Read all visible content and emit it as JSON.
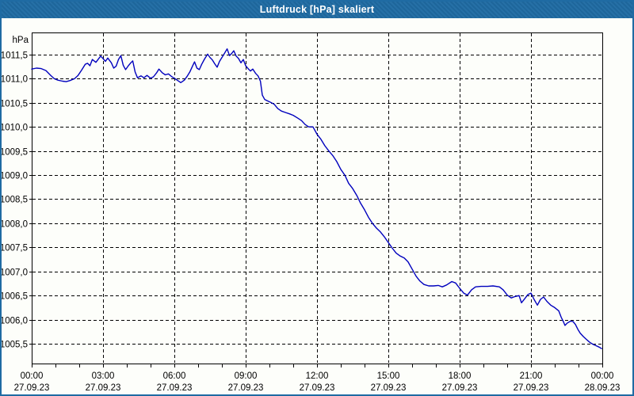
{
  "window": {
    "title": "Luftdruck [hPa] skaliert"
  },
  "colors": {
    "titlebar_bg": "#1f6ba3",
    "titlebar_text": "#ffffff",
    "window_bg": "#fdfefa",
    "window_border": "#1f6ba3",
    "plot_border": "#000000",
    "grid": "#000000",
    "axis_text": "#000000",
    "line": "#0000bd"
  },
  "chart_data": {
    "type": "line",
    "title": "Luftdruck [hPa] skaliert",
    "ylabel": "hPa",
    "xlabel": "",
    "legend_position": "none",
    "grid": "dashed black, horizontal every 0.5 hPa, vertical every 3 h, hourly minor ticks",
    "ylim": [
      1005.5,
      1011.5
    ],
    "xlim_hours": [
      0,
      24
    ],
    "minor_x_tick_every_hours": 1,
    "y_ticks": [
      {
        "value": 1011.5,
        "label": "1011,5"
      },
      {
        "value": 1011.0,
        "label": "1011,0"
      },
      {
        "value": 1010.5,
        "label": "1010,5"
      },
      {
        "value": 1010.0,
        "label": "1010,0"
      },
      {
        "value": 1009.5,
        "label": "1009,5"
      },
      {
        "value": 1009.0,
        "label": "1009,0"
      },
      {
        "value": 1008.5,
        "label": "1008,5"
      },
      {
        "value": 1008.0,
        "label": "1008,0"
      },
      {
        "value": 1007.5,
        "label": "1007,5"
      },
      {
        "value": 1007.0,
        "label": "1007,0"
      },
      {
        "value": 1006.5,
        "label": "1006,5"
      },
      {
        "value": 1006.0,
        "label": "1006,0"
      },
      {
        "value": 1005.5,
        "label": "1005,5"
      }
    ],
    "x_ticks": [
      {
        "hour": 0,
        "time": "00:00",
        "date": "27.09.23"
      },
      {
        "hour": 3,
        "time": "03:00",
        "date": "27.09.23"
      },
      {
        "hour": 6,
        "time": "06:00",
        "date": "27.09.23"
      },
      {
        "hour": 9,
        "time": "09:00",
        "date": "27.09.23"
      },
      {
        "hour": 12,
        "time": "12:00",
        "date": "27.09.23"
      },
      {
        "hour": 15,
        "time": "15:00",
        "date": "27.09.23"
      },
      {
        "hour": 18,
        "time": "18:00",
        "date": "27.09.23"
      },
      {
        "hour": 21,
        "time": "21:00",
        "date": "27.09.23"
      },
      {
        "hour": 24,
        "time": "00:00",
        "date": "28.09.23"
      }
    ],
    "series": [
      {
        "name": "Luftdruck",
        "color": "#0000bd",
        "points": [
          [
            0,
            1011.2
          ],
          [
            0.2,
            1011.22
          ],
          [
            0.4,
            1011.21
          ],
          [
            0.6,
            1011.17
          ],
          [
            0.8,
            1011.07
          ],
          [
            0.95,
            1011.0
          ],
          [
            1.1,
            1010.97
          ],
          [
            1.3,
            1010.95
          ],
          [
            1.45,
            1010.94
          ],
          [
            1.6,
            1010.96
          ],
          [
            1.8,
            1011.0
          ],
          [
            1.95,
            1011.07
          ],
          [
            2.1,
            1011.18
          ],
          [
            2.25,
            1011.3
          ],
          [
            2.35,
            1011.32
          ],
          [
            2.45,
            1011.27
          ],
          [
            2.55,
            1011.4
          ],
          [
            2.7,
            1011.34
          ],
          [
            2.9,
            1011.47
          ],
          [
            3.0,
            1011.42
          ],
          [
            3.1,
            1011.36
          ],
          [
            3.2,
            1011.43
          ],
          [
            3.35,
            1011.33
          ],
          [
            3.45,
            1011.22
          ],
          [
            3.55,
            1011.26
          ],
          [
            3.65,
            1011.4
          ],
          [
            3.75,
            1011.48
          ],
          [
            3.85,
            1011.28
          ],
          [
            3.95,
            1011.19
          ],
          [
            4.05,
            1011.26
          ],
          [
            4.15,
            1011.32
          ],
          [
            4.25,
            1011.37
          ],
          [
            4.35,
            1011.14
          ],
          [
            4.45,
            1011.02
          ],
          [
            4.6,
            1011.06
          ],
          [
            4.72,
            1011.02
          ],
          [
            4.85,
            1011.07
          ],
          [
            5.0,
            1011.01
          ],
          [
            5.12,
            1011.04
          ],
          [
            5.25,
            1011.12
          ],
          [
            5.35,
            1011.2
          ],
          [
            5.5,
            1011.12
          ],
          [
            5.62,
            1011.08
          ],
          [
            5.75,
            1011.1
          ],
          [
            5.9,
            1011.04
          ],
          [
            6.0,
            1011.01
          ],
          [
            6.12,
            1010.97
          ],
          [
            6.27,
            1010.92
          ],
          [
            6.42,
            1010.97
          ],
          [
            6.55,
            1011.06
          ],
          [
            6.65,
            1011.14
          ],
          [
            6.78,
            1011.28
          ],
          [
            6.85,
            1011.35
          ],
          [
            6.95,
            1011.22
          ],
          [
            7.05,
            1011.19
          ],
          [
            7.15,
            1011.3
          ],
          [
            7.27,
            1011.41
          ],
          [
            7.4,
            1011.51
          ],
          [
            7.5,
            1011.44
          ],
          [
            7.6,
            1011.39
          ],
          [
            7.7,
            1011.31
          ],
          [
            7.8,
            1011.24
          ],
          [
            7.9,
            1011.36
          ],
          [
            8.0,
            1011.44
          ],
          [
            8.1,
            1011.52
          ],
          [
            8.22,
            1011.62
          ],
          [
            8.32,
            1011.48
          ],
          [
            8.42,
            1011.53
          ],
          [
            8.5,
            1011.58
          ],
          [
            8.6,
            1011.47
          ],
          [
            8.7,
            1011.42
          ],
          [
            8.8,
            1011.33
          ],
          [
            8.9,
            1011.4
          ],
          [
            9.0,
            1011.27
          ],
          [
            9.1,
            1011.21
          ],
          [
            9.2,
            1011.16
          ],
          [
            9.3,
            1011.2
          ],
          [
            9.42,
            1011.11
          ],
          [
            9.52,
            1011.06
          ],
          [
            9.62,
            1010.95
          ],
          [
            9.7,
            1010.66
          ],
          [
            9.8,
            1010.57
          ],
          [
            9.92,
            1010.54
          ],
          [
            10.05,
            1010.51
          ],
          [
            10.2,
            1010.47
          ],
          [
            10.35,
            1010.38
          ],
          [
            10.5,
            1010.33
          ],
          [
            10.67,
            1010.3
          ],
          [
            10.85,
            1010.27
          ],
          [
            11.0,
            1010.24
          ],
          [
            11.2,
            1010.18
          ],
          [
            11.35,
            1010.13
          ],
          [
            11.5,
            1010.05
          ],
          [
            11.65,
            1010.0
          ],
          [
            11.83,
            1010.0
          ],
          [
            12.0,
            1009.85
          ],
          [
            12.17,
            1009.74
          ],
          [
            12.33,
            1009.61
          ],
          [
            12.5,
            1009.5
          ],
          [
            12.67,
            1009.4
          ],
          [
            12.83,
            1009.28
          ],
          [
            13.0,
            1009.12
          ],
          [
            13.17,
            1009.0
          ],
          [
            13.33,
            1008.83
          ],
          [
            13.5,
            1008.72
          ],
          [
            13.67,
            1008.58
          ],
          [
            13.83,
            1008.42
          ],
          [
            14.0,
            1008.28
          ],
          [
            14.17,
            1008.12
          ],
          [
            14.33,
            1008.0
          ],
          [
            14.5,
            1007.9
          ],
          [
            14.67,
            1007.82
          ],
          [
            14.83,
            1007.72
          ],
          [
            15.0,
            1007.6
          ],
          [
            15.17,
            1007.48
          ],
          [
            15.33,
            1007.38
          ],
          [
            15.5,
            1007.32
          ],
          [
            15.67,
            1007.28
          ],
          [
            15.83,
            1007.2
          ],
          [
            16.0,
            1007.05
          ],
          [
            16.17,
            1006.9
          ],
          [
            16.33,
            1006.8
          ],
          [
            16.5,
            1006.73
          ],
          [
            16.7,
            1006.7
          ],
          [
            16.9,
            1006.7
          ],
          [
            17.1,
            1006.71
          ],
          [
            17.27,
            1006.68
          ],
          [
            17.45,
            1006.72
          ],
          [
            17.67,
            1006.79
          ],
          [
            17.83,
            1006.76
          ],
          [
            18.0,
            1006.65
          ],
          [
            18.17,
            1006.55
          ],
          [
            18.33,
            1006.51
          ],
          [
            18.5,
            1006.62
          ],
          [
            18.67,
            1006.68
          ],
          [
            18.9,
            1006.69
          ],
          [
            19.17,
            1006.69
          ],
          [
            19.4,
            1006.7
          ],
          [
            19.67,
            1006.68
          ],
          [
            19.83,
            1006.62
          ],
          [
            20.0,
            1006.51
          ],
          [
            20.17,
            1006.45
          ],
          [
            20.33,
            1006.48
          ],
          [
            20.5,
            1006.5
          ],
          [
            20.6,
            1006.35
          ],
          [
            20.73,
            1006.43
          ],
          [
            20.87,
            1006.52
          ],
          [
            21.0,
            1006.55
          ],
          [
            21.13,
            1006.42
          ],
          [
            21.27,
            1006.3
          ],
          [
            21.4,
            1006.42
          ],
          [
            21.53,
            1006.47
          ],
          [
            21.67,
            1006.38
          ],
          [
            21.83,
            1006.3
          ],
          [
            22.0,
            1006.25
          ],
          [
            22.17,
            1006.18
          ],
          [
            22.27,
            1006.05
          ],
          [
            22.37,
            1005.95
          ],
          [
            22.43,
            1005.88
          ],
          [
            22.53,
            1005.93
          ],
          [
            22.67,
            1005.97
          ],
          [
            22.77,
            1005.96
          ],
          [
            22.87,
            1005.9
          ],
          [
            22.97,
            1005.8
          ],
          [
            23.07,
            1005.72
          ],
          [
            23.2,
            1005.65
          ],
          [
            23.33,
            1005.59
          ],
          [
            23.47,
            1005.53
          ],
          [
            23.6,
            1005.49
          ],
          [
            23.73,
            1005.46
          ],
          [
            23.87,
            1005.43
          ],
          [
            23.97,
            1005.4
          ]
        ]
      }
    ]
  }
}
